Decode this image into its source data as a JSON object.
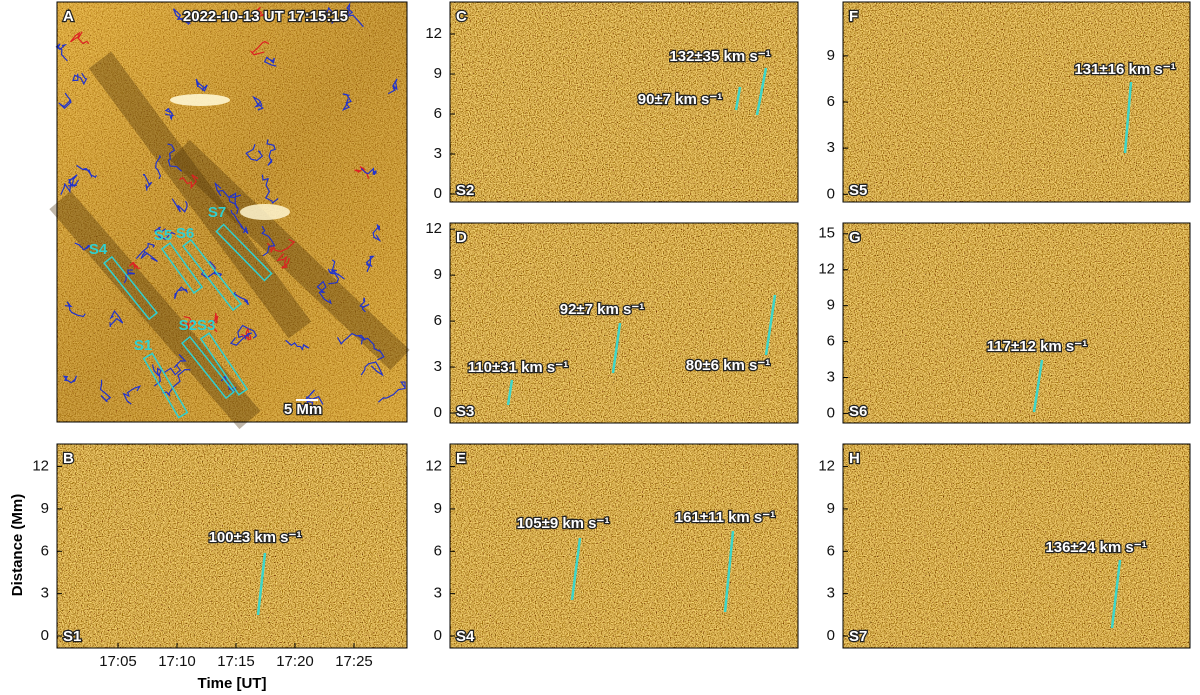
{
  "shared_axes": {
    "ylabel": "Distance (Mm)",
    "xlabel": "Time [UT]",
    "xticks": [
      "17:05",
      "17:10",
      "17:15",
      "17:20",
      "17:25"
    ]
  },
  "context_image": {
    "letter": "A",
    "timestamp": "2022-10-13 UT 17:15:15",
    "scale": "5 Mm",
    "slits": [
      "S1",
      "S2S3",
      "S4",
      "S5",
      "S6",
      "S7"
    ]
  },
  "chart_data": [
    {
      "type": "kymograph",
      "letter": "B",
      "slit": "S1",
      "ylim": [
        -0.85,
        13.6
      ],
      "yticks": [
        0,
        3,
        6,
        9,
        12
      ],
      "annotations": [
        "100±3 km s⁻¹"
      ]
    },
    {
      "type": "kymograph",
      "letter": "C",
      "slit": "S2",
      "ylim": [
        -0.6,
        14.4
      ],
      "yticks": [
        0,
        3,
        6,
        9,
        12
      ],
      "annotations": [
        "132±35 km s⁻¹",
        "90±7 km s⁻¹"
      ]
    },
    {
      "type": "kymograph",
      "letter": "D",
      "slit": "S3",
      "ylim": [
        -0.65,
        12.4
      ],
      "yticks": [
        0,
        3,
        6,
        9,
        12
      ],
      "annotations": [
        "92±7 km s⁻¹",
        "110±31 km s⁻¹",
        "80±6 km s⁻¹"
      ]
    },
    {
      "type": "kymograph",
      "letter": "E",
      "slit": "S4",
      "ylim": [
        -0.85,
        13.6
      ],
      "yticks": [
        0,
        3,
        6,
        9,
        12
      ],
      "annotations": [
        "105±9 km s⁻¹",
        "161±11 km s⁻¹"
      ]
    },
    {
      "type": "kymograph",
      "letter": "F",
      "slit": "S5",
      "ylim": [
        -0.5,
        12.5
      ],
      "yticks": [
        0,
        3,
        6,
        9
      ],
      "annotations": [
        "131±16 km s⁻¹"
      ]
    },
    {
      "type": "kymograph",
      "letter": "G",
      "slit": "S6",
      "ylim": [
        -0.8,
        15.9
      ],
      "yticks": [
        0,
        3,
        6,
        9,
        12,
        15
      ],
      "annotations": [
        "117±12 km s⁻¹"
      ]
    },
    {
      "type": "kymograph",
      "letter": "H",
      "slit": "S7",
      "ylim": [
        -0.85,
        13.6
      ],
      "yticks": [
        0,
        3,
        6,
        9,
        12
      ],
      "annotations": [
        "136±24 km s⁻¹"
      ]
    }
  ]
}
